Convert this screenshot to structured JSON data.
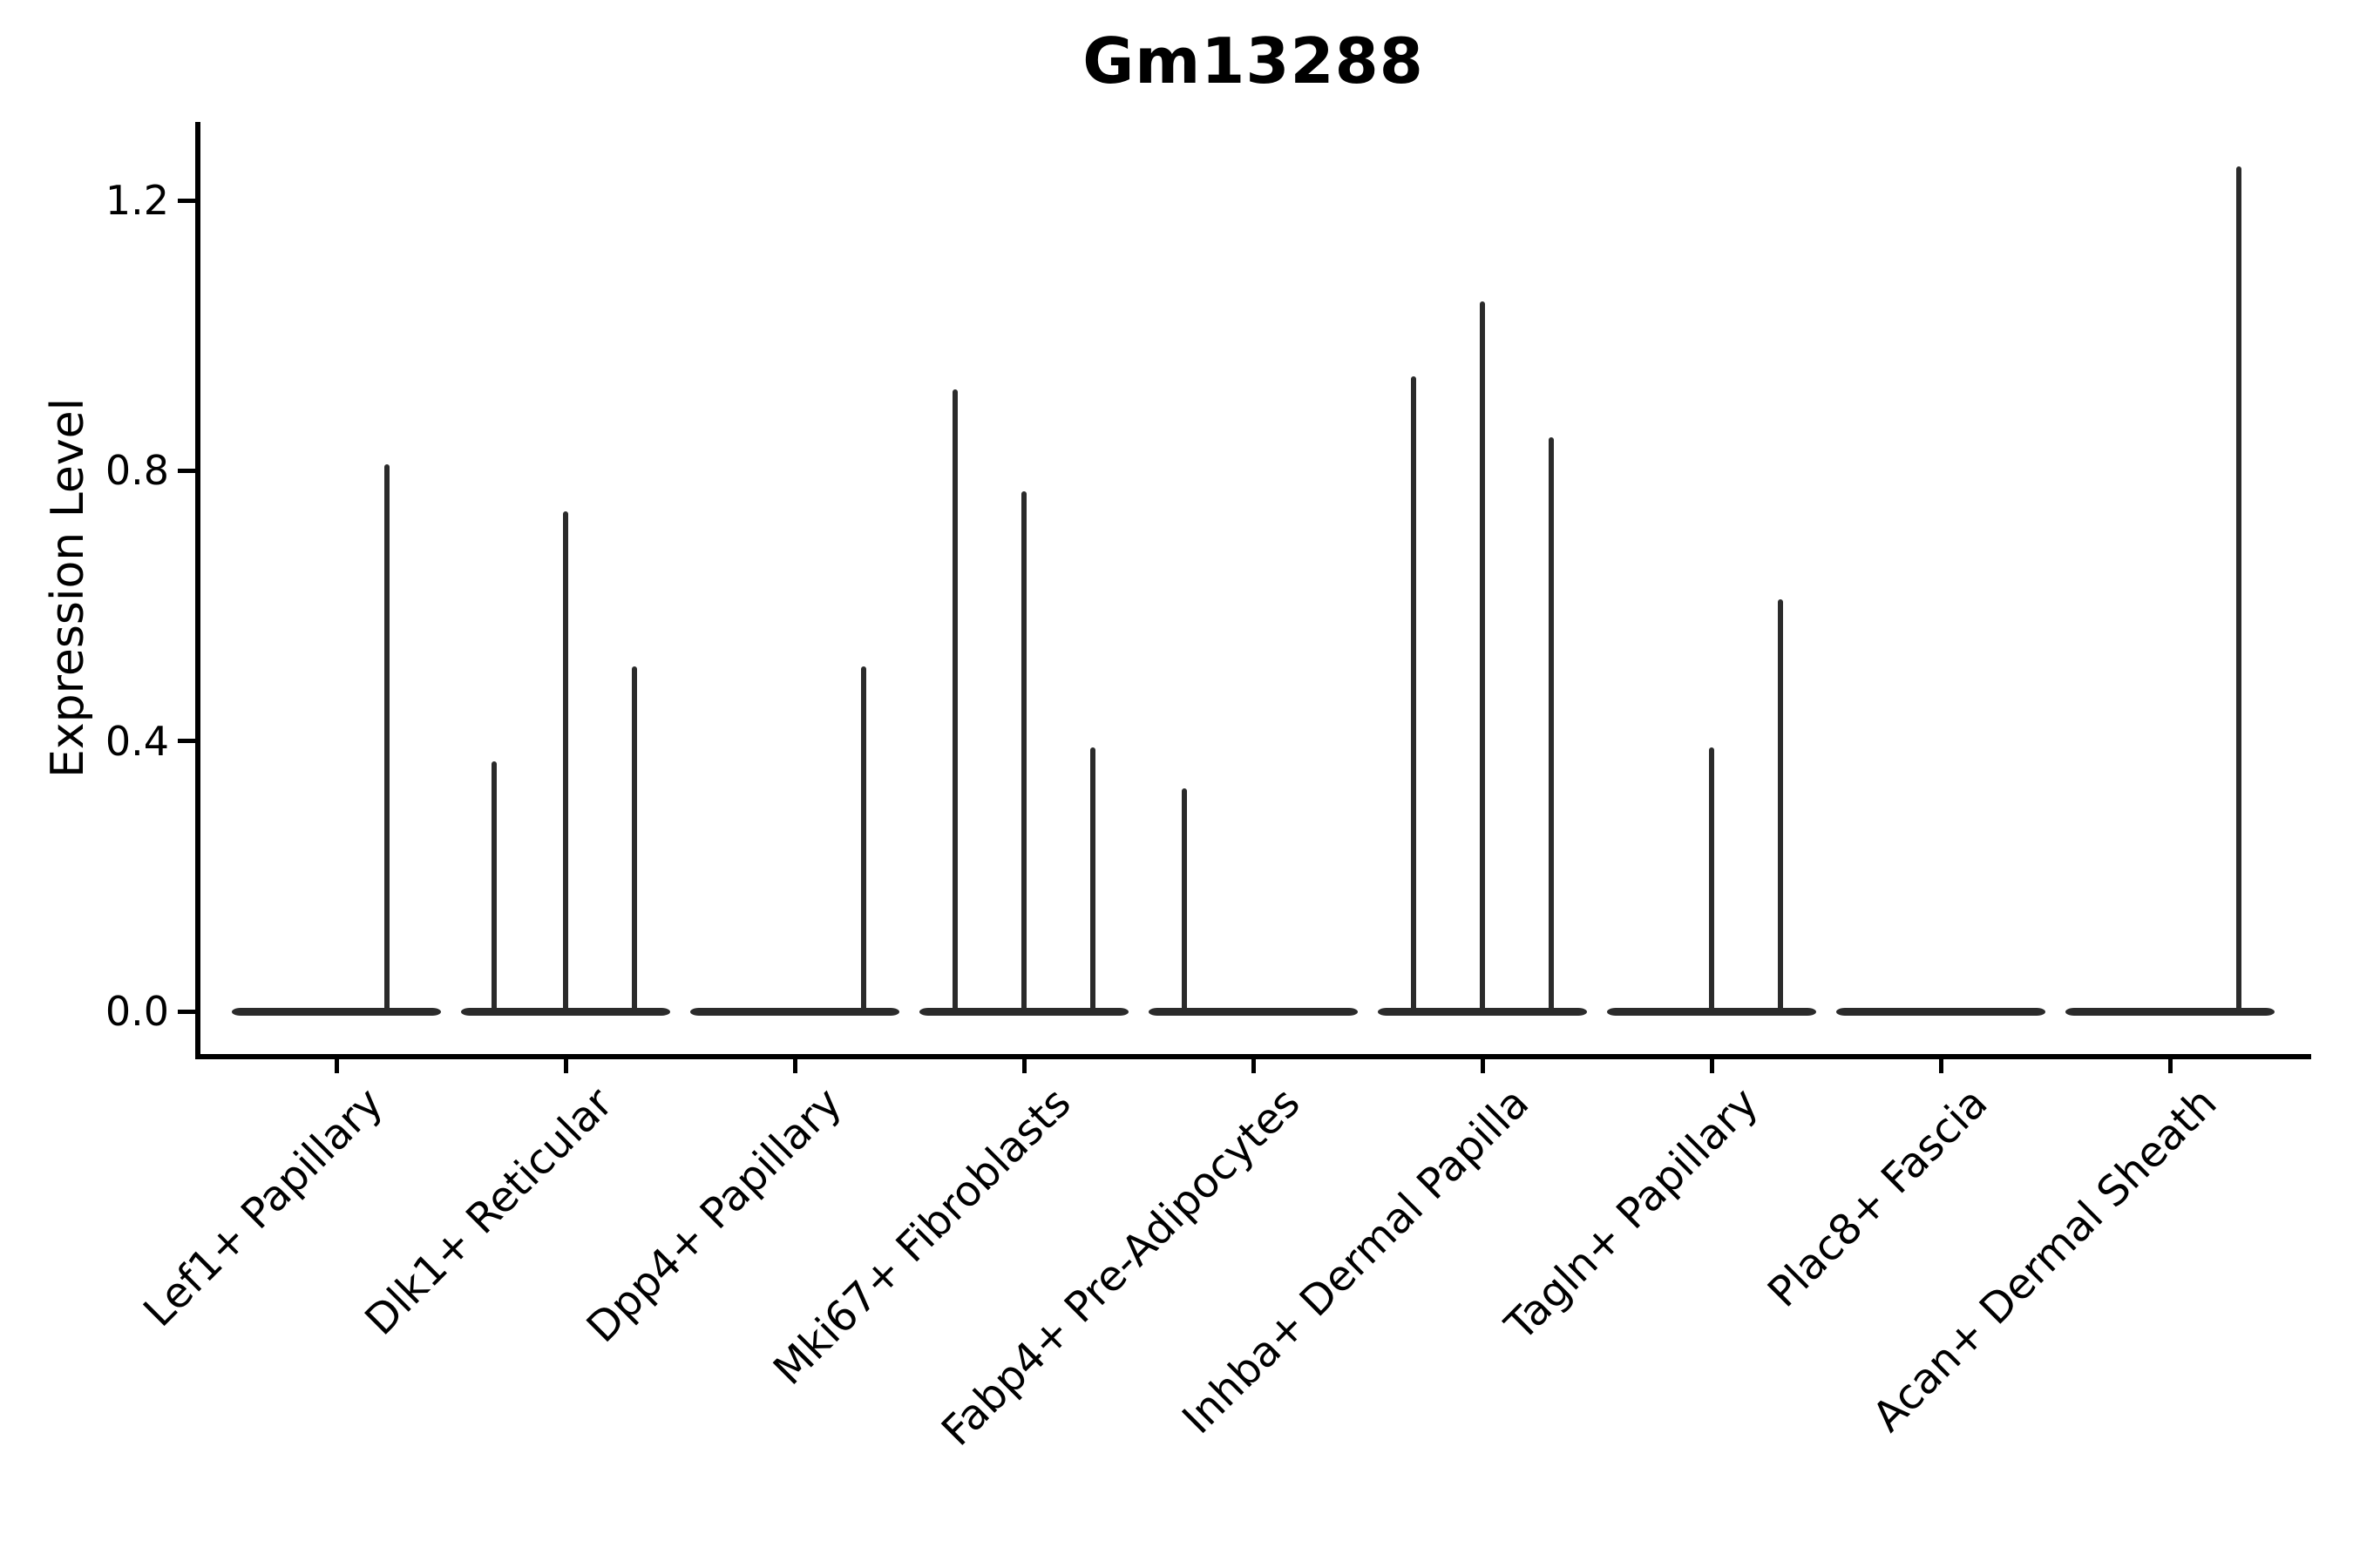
{
  "title": "Gm13288",
  "axes": {
    "ylabel": "Expression Level",
    "ytick_labels": [
      "0.0",
      "0.4",
      "0.8",
      "1.2"
    ]
  },
  "chart_data": {
    "type": "violin",
    "title": "Gm13288",
    "xlabel": "",
    "ylabel": "Expression Level",
    "ylim": [
      -0.06,
      1.32
    ],
    "yticks": [
      0.0,
      0.4,
      0.8,
      1.2
    ],
    "grid": false,
    "legend": "none",
    "categories": [
      "Lef1+ Papillary",
      "Dlk1+ Reticular",
      "Dpp4+ Papillary",
      "Mki67+ Fibroblasts",
      "Fabp4+ Pre-Adipocytes",
      "Inhba+ Dermal Papilla",
      "Tagln+ Papillary",
      "Plac8+ Fascia",
      "Acan+ Dermal Sheath"
    ],
    "baseline_value": 0.0,
    "violin_body_width": 0.92,
    "spike_dx_units": "fraction of category spacing",
    "series": [
      {
        "name": "Lef1+ Papillary",
        "spikes": [
          {
            "dx": 0.22,
            "value": 0.81
          }
        ]
      },
      {
        "name": "Dlk1+ Reticular",
        "spikes": [
          {
            "dx": -0.31,
            "value": 0.37
          },
          {
            "dx": 0.0,
            "value": 0.74
          },
          {
            "dx": 0.3,
            "value": 0.51
          }
        ]
      },
      {
        "name": "Dpp4+ Papillary",
        "spikes": [
          {
            "dx": 0.3,
            "value": 0.51
          }
        ]
      },
      {
        "name": "Mki67+ Fibroblasts",
        "spikes": [
          {
            "dx": -0.3,
            "value": 0.92
          },
          {
            "dx": 0.0,
            "value": 0.77
          },
          {
            "dx": 0.3,
            "value": 0.39
          }
        ]
      },
      {
        "name": "Fabp4+ Pre-Adipocytes",
        "spikes": [
          {
            "dx": -0.3,
            "value": 0.33
          }
        ]
      },
      {
        "name": "Inhba+ Dermal Papilla",
        "spikes": [
          {
            "dx": -0.3,
            "value": 0.94
          },
          {
            "dx": 0.0,
            "value": 1.05
          },
          {
            "dx": 0.3,
            "value": 0.85
          }
        ]
      },
      {
        "name": "Tagln+ Papillary",
        "spikes": [
          {
            "dx": 0.0,
            "value": 0.39
          },
          {
            "dx": 0.3,
            "value": 0.61
          }
        ]
      },
      {
        "name": "Plac8+ Fascia",
        "spikes": []
      },
      {
        "name": "Acan+ Dermal Sheath",
        "spikes": [
          {
            "dx": 0.3,
            "value": 1.25
          }
        ]
      }
    ],
    "colors": {
      "violin": "#2b2b2b",
      "spine": "#000000",
      "text": "#000000"
    }
  }
}
